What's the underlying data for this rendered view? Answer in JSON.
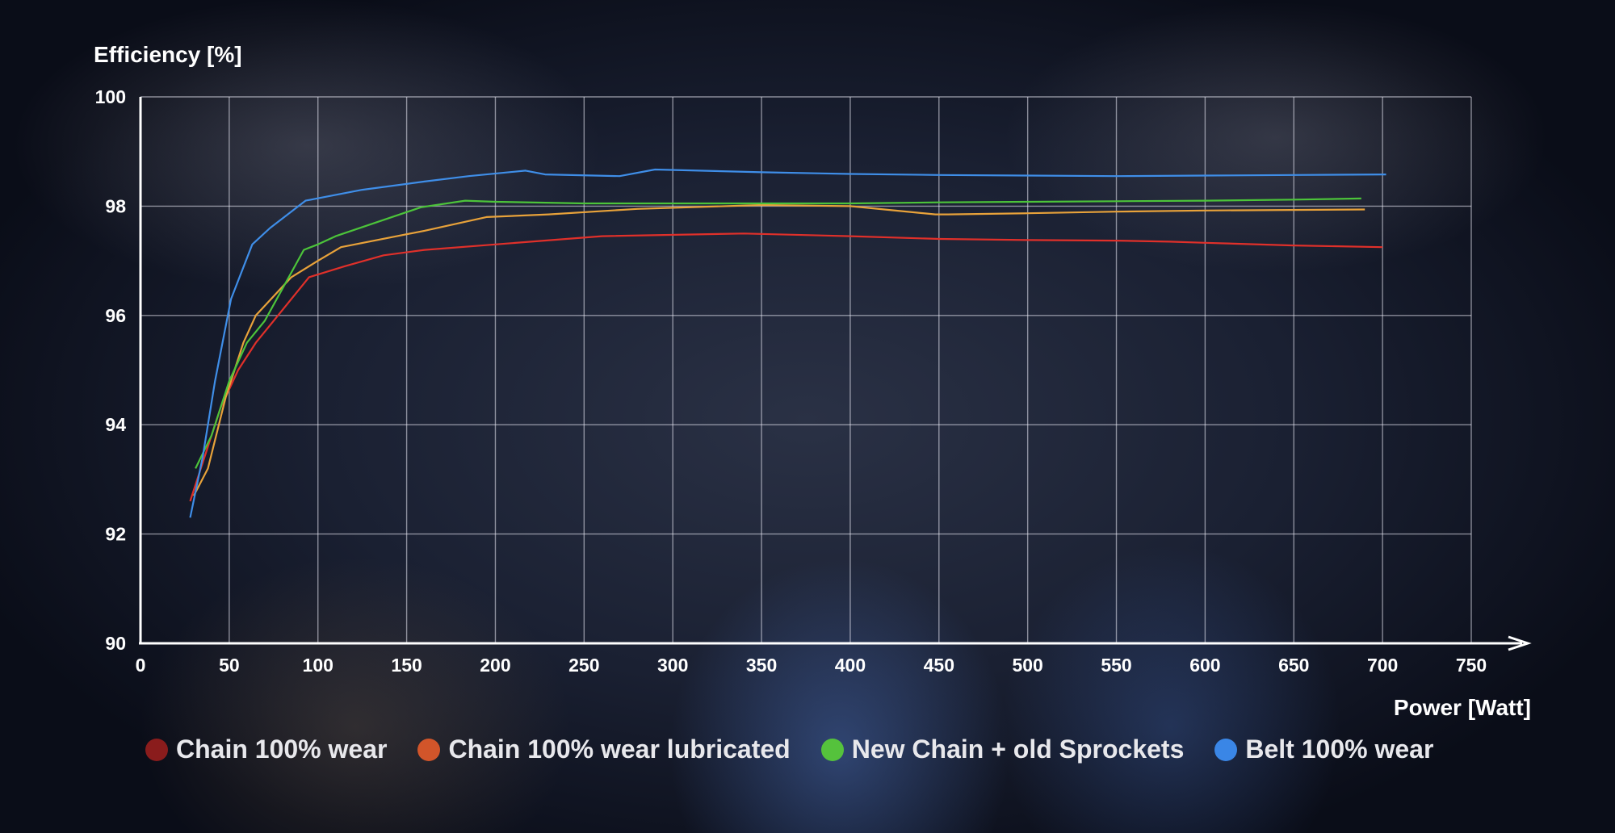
{
  "chart_data": {
    "type": "line",
    "title": "",
    "ylabel": "Efficiency [%]",
    "xlabel": "Power [Watt]",
    "xlim": [
      0,
      750
    ],
    "ylim": [
      90,
      100
    ],
    "xticks": [
      "0",
      "50",
      "100",
      "150",
      "200",
      "250",
      "300",
      "350",
      "400",
      "450",
      "500",
      "550",
      "600",
      "650",
      "700",
      "750"
    ],
    "yticks": [
      "90",
      "92",
      "94",
      "96",
      "98",
      "100"
    ],
    "grid": true,
    "legend_position": "bottom",
    "series": [
      {
        "name": "Chain 100% wear",
        "color": "#e0302a",
        "legend_color": "#8a1c1c",
        "x": [
          28,
          35,
          45,
          55,
          65,
          75,
          95,
          115,
          137,
          160,
          200,
          260,
          340,
          400,
          450,
          500,
          550,
          580,
          600,
          650,
          700
        ],
        "y": [
          92.6,
          93.3,
          94.3,
          95.0,
          95.5,
          95.9,
          96.7,
          96.9,
          97.1,
          97.2,
          97.3,
          97.45,
          97.5,
          97.45,
          97.4,
          97.38,
          97.37,
          97.35,
          97.33,
          97.28,
          97.25
        ]
      },
      {
        "name": "Chain 100% wear lubricated",
        "color": "#e8a23a",
        "legend_color": "#d2552a",
        "x": [
          30,
          38,
          48,
          58,
          65,
          85,
          100,
          113,
          160,
          195,
          230,
          280,
          350,
          400,
          448,
          455,
          500,
          550,
          600,
          690
        ],
        "y": [
          92.7,
          93.2,
          94.5,
          95.5,
          96.0,
          96.7,
          97.0,
          97.25,
          97.55,
          97.8,
          97.85,
          97.95,
          98.02,
          98.0,
          97.85,
          97.85,
          97.87,
          97.9,
          97.92,
          97.94
        ]
      },
      {
        "name": "New Chain + old Sprockets",
        "color": "#4cc43a",
        "legend_color": "#55c23c",
        "x": [
          31,
          40,
          50,
          60,
          70,
          92,
          100,
          110,
          158,
          183,
          200,
          250,
          300,
          400,
          450,
          500,
          550,
          600,
          650,
          688
        ],
        "y": [
          93.2,
          93.8,
          94.8,
          95.5,
          95.9,
          97.2,
          97.3,
          97.45,
          97.98,
          98.1,
          98.08,
          98.05,
          98.05,
          98.05,
          98.07,
          98.08,
          98.09,
          98.1,
          98.12,
          98.14
        ]
      },
      {
        "name": "Belt 100% wear",
        "color": "#3f8ee8",
        "legend_color": "#3a86e6",
        "x": [
          28,
          35,
          42,
          51,
          63,
          73,
          93,
          125,
          160,
          185,
          217,
          228,
          270,
          290,
          350,
          400,
          450,
          500,
          550,
          600,
          650,
          702
        ],
        "y": [
          92.3,
          93.4,
          94.8,
          96.3,
          97.3,
          97.6,
          98.1,
          98.3,
          98.45,
          98.55,
          98.65,
          98.58,
          98.55,
          98.67,
          98.62,
          98.59,
          98.57,
          98.56,
          98.55,
          98.56,
          98.57,
          98.58
        ]
      }
    ]
  }
}
